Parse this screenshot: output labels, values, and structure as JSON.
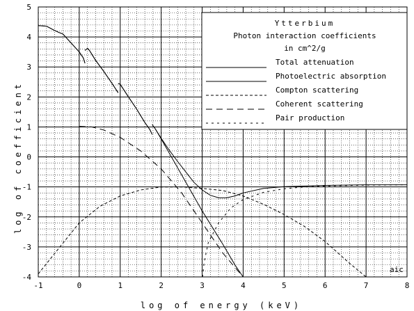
{
  "chart_data": {
    "type": "line",
    "title": "Ytterbium",
    "subtitle_line1": "Photon interaction coefficients",
    "subtitle_line2": "in cm^2/g",
    "xlabel": "log of energy (keV)",
    "ylabel": "log of coefficient",
    "xlim": [
      -1,
      8
    ],
    "ylim": [
      -4,
      5
    ],
    "x_ticks": [
      "-1",
      "0",
      "1",
      "2",
      "3",
      "4",
      "5",
      "6",
      "7",
      "8"
    ],
    "y_ticks": [
      "5",
      "4",
      "3",
      "2",
      "1",
      "0",
      "-1",
      "-2",
      "-3",
      "-4"
    ],
    "grid": true,
    "legend_position": "top-right",
    "credit": "aic",
    "series": [
      {
        "name": "Total attenuation",
        "style": "solid",
        "segments": [
          [
            [
              -1.0,
              4.38
            ],
            [
              -0.8,
              4.36
            ],
            [
              -0.65,
              4.25
            ],
            [
              -0.5,
              4.15
            ],
            [
              -0.4,
              4.1
            ],
            [
              -0.2,
              3.8
            ],
            [
              0.0,
              3.5
            ],
            [
              0.1,
              3.3
            ],
            [
              0.14,
              3.12
            ]
          ],
          [
            [
              0.14,
              3.55
            ],
            [
              0.2,
              3.62
            ],
            [
              0.25,
              3.55
            ],
            [
              0.4,
              3.22
            ],
            [
              0.6,
              2.85
            ],
            [
              0.8,
              2.45
            ],
            [
              0.92,
              2.2
            ],
            [
              0.95,
              2.14
            ]
          ],
          [
            [
              0.95,
              2.45
            ],
            [
              1.0,
              2.42
            ],
            [
              1.2,
              2.0
            ],
            [
              1.4,
              1.6
            ],
            [
              1.6,
              1.15
            ],
            [
              1.72,
              0.92
            ],
            [
              1.78,
              0.75
            ]
          ],
          [
            [
              1.78,
              1.08
            ],
            [
              1.85,
              0.95
            ],
            [
              2.0,
              0.62
            ],
            [
              2.2,
              0.22
            ],
            [
              2.4,
              -0.15
            ],
            [
              2.6,
              -0.5
            ],
            [
              2.8,
              -0.85
            ],
            [
              3.0,
              -1.1
            ],
            [
              3.2,
              -1.28
            ],
            [
              3.4,
              -1.36
            ],
            [
              3.6,
              -1.36
            ],
            [
              3.8,
              -1.3
            ],
            [
              4.0,
              -1.2
            ],
            [
              4.5,
              -1.05
            ],
            [
              5.0,
              -0.99
            ],
            [
              6.0,
              -0.95
            ],
            [
              7.0,
              -0.93
            ],
            [
              8.0,
              -0.93
            ]
          ]
        ]
      },
      {
        "name": "Photoelectric absorption",
        "style": "solid",
        "segments": [
          [
            [
              -1.0,
              4.38
            ],
            [
              -0.8,
              4.36
            ],
            [
              -0.65,
              4.25
            ],
            [
              -0.5,
              4.15
            ],
            [
              -0.4,
              4.1
            ],
            [
              -0.2,
              3.8
            ],
            [
              0.0,
              3.5
            ],
            [
              0.1,
              3.3
            ],
            [
              0.14,
              3.12
            ]
          ],
          [
            [
              0.14,
              3.55
            ],
            [
              0.2,
              3.62
            ],
            [
              0.25,
              3.55
            ],
            [
              0.4,
              3.22
            ],
            [
              0.6,
              2.85
            ],
            [
              0.8,
              2.45
            ],
            [
              0.92,
              2.2
            ],
            [
              0.95,
              2.14
            ]
          ],
          [
            [
              0.95,
              2.45
            ],
            [
              1.0,
              2.42
            ],
            [
              1.2,
              2.0
            ],
            [
              1.4,
              1.6
            ],
            [
              1.6,
              1.15
            ],
            [
              1.72,
              0.92
            ],
            [
              1.78,
              0.75
            ]
          ],
          [
            [
              1.78,
              1.08
            ],
            [
              1.85,
              0.95
            ],
            [
              2.0,
              0.6
            ],
            [
              2.5,
              -0.6
            ],
            [
              3.0,
              -1.8
            ],
            [
              3.5,
              -2.9
            ],
            [
              3.8,
              -3.6
            ],
            [
              4.0,
              -4.0
            ]
          ]
        ]
      },
      {
        "name": "Compton scattering",
        "style": "dashed",
        "segments": [
          [
            [
              -1.0,
              -3.9
            ],
            [
              -0.5,
              -3.05
            ],
            [
              0.0,
              -2.2
            ],
            [
              0.5,
              -1.65
            ],
            [
              1.0,
              -1.3
            ],
            [
              1.5,
              -1.1
            ],
            [
              2.0,
              -1.0
            ],
            [
              2.5,
              -1.0
            ],
            [
              3.0,
              -1.05
            ],
            [
              3.5,
              -1.12
            ],
            [
              4.0,
              -1.3
            ],
            [
              4.5,
              -1.58
            ],
            [
              5.0,
              -1.92
            ],
            [
              5.5,
              -2.32
            ],
            [
              6.0,
              -2.82
            ],
            [
              6.6,
              -3.55
            ],
            [
              7.0,
              -4.0
            ]
          ]
        ]
      },
      {
        "name": "Coherent scattering",
        "style": "longdash",
        "segments": [
          [
            [
              0.0,
              1.02
            ],
            [
              0.3,
              1.0
            ],
            [
              0.6,
              0.9
            ],
            [
              1.0,
              0.65
            ],
            [
              1.5,
              0.2
            ],
            [
              2.0,
              -0.4
            ],
            [
              2.5,
              -1.2
            ],
            [
              3.0,
              -2.2
            ],
            [
              3.5,
              -3.2
            ],
            [
              4.0,
              -4.0
            ]
          ]
        ]
      },
      {
        "name": "Pair production",
        "style": "dotted",
        "segments": [
          [
            [
              3.01,
              -4.0
            ],
            [
              3.05,
              -3.5
            ],
            [
              3.15,
              -2.85
            ],
            [
              3.4,
              -2.2
            ],
            [
              3.7,
              -1.7
            ],
            [
              4.0,
              -1.42
            ],
            [
              4.5,
              -1.18
            ],
            [
              5.0,
              -1.06
            ],
            [
              5.5,
              -1.0
            ],
            [
              6.0,
              -0.97
            ],
            [
              7.0,
              -0.94
            ],
            [
              8.0,
              -0.93
            ]
          ]
        ]
      }
    ]
  }
}
